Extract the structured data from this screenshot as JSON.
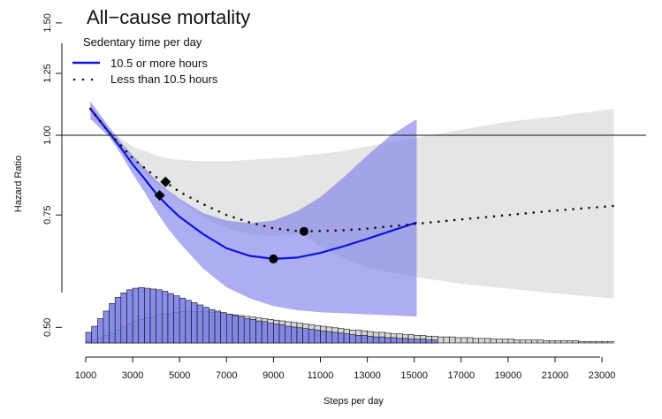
{
  "chart_data": {
    "type": "line",
    "title": "All−cause mortality",
    "xlabel": "Steps per day",
    "ylabel": "Hazard Ratio",
    "x_ticks": [
      1000,
      3000,
      5000,
      7000,
      9000,
      11000,
      13000,
      15000,
      17000,
      19000,
      21000,
      23000
    ],
    "x_tick_labels": [
      "1000",
      "3000",
      "5000",
      "7000",
      "9000",
      "11000",
      "13000",
      "15000",
      "17000",
      "19000",
      "21000",
      "23000"
    ],
    "xlim": [
      200,
      24500
    ],
    "y_scale": "log",
    "y_ticks": [
      0.5,
      0.75,
      1.0,
      1.25,
      1.5
    ],
    "y_tick_labels": [
      "0.50",
      "0.75",
      "1.00",
      "1.25",
      "1.50"
    ],
    "reference_line": 1.0,
    "legend": {
      "title": "Sedentary time per day",
      "position": "top-left",
      "entries": [
        "10.5 or more hours",
        "Less than 10.5 hours"
      ]
    },
    "series": [
      {
        "name": "10.5 or more hours",
        "style": "solid",
        "color": "#0a14dc",
        "x": [
          1200,
          2000,
          2500,
          3000,
          3500,
          4000,
          4500,
          5000,
          6000,
          7000,
          8000,
          9000,
          10000,
          11000,
          12000,
          13000,
          14000,
          15100
        ],
        "y": [
          1.1,
          1.01,
          0.955,
          0.9,
          0.855,
          0.81,
          0.775,
          0.745,
          0.7,
          0.665,
          0.647,
          0.64,
          0.643,
          0.654,
          0.67,
          0.688,
          0.708,
          0.73
        ],
        "ci_lower": [
          1.06,
          0.995,
          0.935,
          0.87,
          0.815,
          0.76,
          0.715,
          0.678,
          0.618,
          0.578,
          0.555,
          0.54,
          0.532,
          0.528,
          0.526,
          0.524,
          0.522,
          0.52
        ],
        "ci_upper": [
          1.13,
          1.03,
          0.975,
          0.93,
          0.89,
          0.85,
          0.82,
          0.795,
          0.755,
          0.735,
          0.728,
          0.735,
          0.76,
          0.8,
          0.86,
          0.93,
          1.0,
          1.06
        ],
        "ci_color": "#7478e8",
        "markers": [
          {
            "shape": "diamond",
            "x": 4150,
            "y": 0.805
          },
          {
            "shape": "circle",
            "x": 9000,
            "y": 0.64
          }
        ]
      },
      {
        "name": "Less than 10.5 hours",
        "style": "dotted",
        "color": "#111111",
        "x": [
          1200,
          2000,
          3000,
          4000,
          4500,
          5000,
          6000,
          7000,
          8000,
          9000,
          10000,
          10300,
          11000,
          12000,
          13000,
          15000,
          17000,
          19000,
          21000,
          23500
        ],
        "y": [
          1.1,
          1.01,
          0.92,
          0.86,
          0.84,
          0.815,
          0.78,
          0.75,
          0.73,
          0.715,
          0.708,
          0.707,
          0.708,
          0.71,
          0.714,
          0.726,
          0.738,
          0.75,
          0.762,
          0.775
        ],
        "ci_lower": [
          1.08,
          1.0,
          0.905,
          0.84,
          0.815,
          0.79,
          0.745,
          0.715,
          0.7,
          0.695,
          0.7,
          0.7,
          0.67,
          0.64,
          0.62,
          0.6,
          0.585,
          0.575,
          0.565,
          0.555
        ],
        "ci_upper": [
          1.12,
          1.02,
          0.96,
          0.93,
          0.92,
          0.915,
          0.91,
          0.91,
          0.915,
          0.92,
          0.925,
          0.93,
          0.935,
          0.945,
          0.96,
          0.99,
          1.02,
          1.05,
          1.07,
          1.1
        ],
        "ci_color": "#dcdcdc",
        "markers": [
          {
            "shape": "diamond",
            "x": 4400,
            "y": 0.845
          },
          {
            "shape": "circle",
            "x": 10300,
            "y": 0.707
          }
        ]
      }
    ],
    "histograms": [
      {
        "name": "Less than 10.5 hours",
        "color": "#d4d4d4",
        "bin_start": 1000,
        "bin_width": 250,
        "heights": [
          2,
          4,
          7,
          10,
          13,
          17,
          21,
          25,
          28,
          31,
          33,
          35,
          37,
          38,
          39,
          40,
          41,
          41,
          41,
          41,
          41,
          40,
          40,
          39,
          38,
          37,
          36,
          35,
          34,
          33,
          32,
          31,
          30,
          29,
          28,
          27,
          26,
          25,
          24,
          23,
          22,
          21,
          20,
          19,
          18,
          17,
          17,
          16,
          15,
          14,
          14,
          13,
          12,
          12,
          11,
          11,
          10,
          10,
          9,
          9,
          8,
          8,
          8,
          7,
          7,
          7,
          6,
          6,
          6,
          5,
          5,
          5,
          5,
          4,
          4,
          4,
          4,
          4,
          3,
          3,
          3,
          3,
          3,
          3,
          2,
          2,
          2,
          2,
          2,
          2
        ]
      },
      {
        "name": "10.5 or more hours",
        "color": "#7479e5",
        "bin_start": 1000,
        "bin_width": 250,
        "heights": [
          14,
          22,
          32,
          42,
          52,
          60,
          66,
          70,
          72,
          73,
          72,
          71,
          70,
          68,
          65,
          62,
          59,
          56,
          53,
          50,
          47,
          44,
          42,
          40,
          38,
          36,
          34,
          32,
          31,
          29,
          28,
          26,
          25,
          24,
          22,
          21,
          20,
          19,
          18,
          17,
          16,
          15,
          14,
          13,
          12,
          11,
          10,
          10,
          9,
          8,
          8,
          7,
          7,
          6,
          6,
          5,
          5,
          5,
          4,
          4
        ]
      }
    ]
  }
}
